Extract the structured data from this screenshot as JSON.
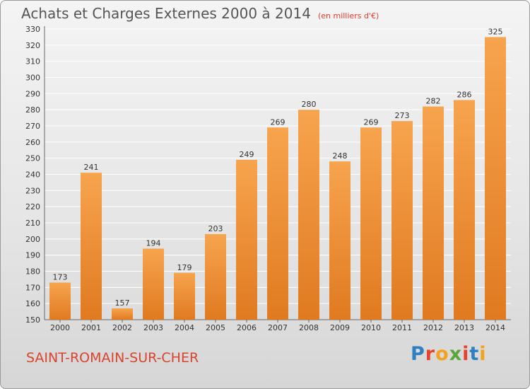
{
  "title": "Achats et Charges Externes 2000 à 2014",
  "unit": "(en milliers d'€)",
  "commune": "SAINT-ROMAIN-SUR-CHER",
  "logo": {
    "text": "Proxiti",
    "letters": [
      {
        "ch": "P",
        "color": "#2f7fc1"
      },
      {
        "ch": "r",
        "color": "#e8412e"
      },
      {
        "ch": "o",
        "color": "#f2a21d"
      },
      {
        "ch": "x",
        "color": "#5aa63a"
      },
      {
        "ch": "i",
        "color": "#e8412e"
      },
      {
        "ch": "t",
        "color": "#2f7fc1"
      },
      {
        "ch": "i",
        "color": "#f2a21d"
      }
    ]
  },
  "colors": {
    "bar_top": "#f7a44e",
    "bar_bottom": "#e07a20",
    "grid": "#ffffff",
    "axis_text": "#333333"
  },
  "chart_data": {
    "type": "bar",
    "categories": [
      "2000",
      "2001",
      "2002",
      "2003",
      "2004",
      "2005",
      "2006",
      "2007",
      "2008",
      "2009",
      "2010",
      "2011",
      "2012",
      "2013",
      "2014"
    ],
    "values": [
      173,
      241,
      157,
      194,
      179,
      203,
      249,
      269,
      280,
      248,
      269,
      273,
      282,
      286,
      325
    ],
    "ylim": [
      150,
      330
    ],
    "yticks": [
      150,
      160,
      170,
      180,
      190,
      200,
      210,
      220,
      230,
      240,
      250,
      260,
      270,
      280,
      290,
      300,
      310,
      320,
      330
    ],
    "grid": true,
    "data_labels": true
  }
}
